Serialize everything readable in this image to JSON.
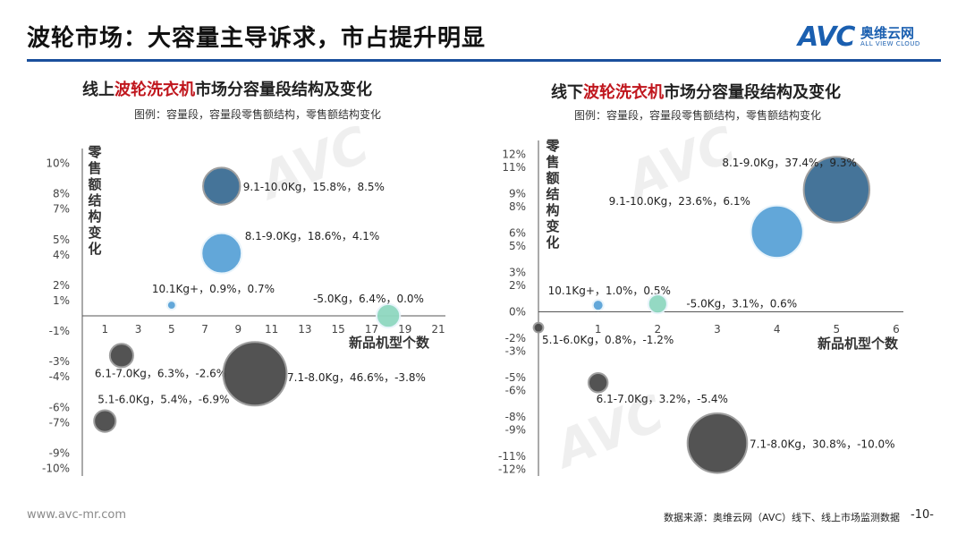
{
  "page": {
    "title": "波轮市场：大容量主导诉求，市占提升明显",
    "logo": {
      "brand": "AVC",
      "cn": "奥维云网",
      "en": "ALL VIEW CLOUD"
    },
    "footer": {
      "url": "www.avc-mr.com",
      "source": "数据来源：奥维云网（AVC）线下、线上市场监测数据",
      "page_no": "-10-"
    },
    "watermark": "AVC"
  },
  "colors": {
    "blue_dark": "#3c6d94",
    "blue_light": "#5aa3d8",
    "gray_dark": "#4a4a4a",
    "teal": "#8fd8c0",
    "highlight_red": "#c0161d",
    "rule_blue": "#1a4f9c"
  },
  "chart_data": [
    {
      "type": "bubble",
      "title_prefix": "线上",
      "title_highlight": "波轮洗衣机",
      "title_suffix": "市场分容量段结构及变化",
      "legend_text": "图例：容量段，容量段零售额结构，零售额结构变化",
      "xlabel": "新品机型个数",
      "ylabel": "零售额结构变化",
      "x_ticks": [
        1,
        3,
        5,
        7,
        9,
        11,
        13,
        15,
        17,
        19,
        21
      ],
      "x_tick_labels": [
        "1",
        "3",
        "5",
        "7",
        "9",
        "11",
        "13",
        "15",
        "17",
        "19",
        "21"
      ],
      "y_ticks": [
        10,
        8,
        7,
        5,
        4,
        2,
        1,
        -1,
        -3,
        -4,
        -6,
        -7,
        -9,
        -10
      ],
      "y_tick_labels": [
        "10%",
        "8%",
        "7%",
        "5%",
        "4%",
        "2%",
        "1%",
        "-1%",
        "-3%",
        "-4%",
        "-6%",
        "-7%",
        "-9%",
        "-10%"
      ],
      "ylim": [
        -10.5,
        10.5
      ],
      "xlim": [
        -1,
        21
      ],
      "bubbles": [
        {
          "label": "9.1-10.0Kg，15.8%，8.5%",
          "x": 8,
          "y": 8.5,
          "share": 15.8,
          "color": "#3c6d94"
        },
        {
          "label": "8.1-9.0Kg，18.6%，4.1%",
          "x": 8,
          "y": 4.1,
          "share": 18.6,
          "color": "#5aa3d8"
        },
        {
          "label": "10.1Kg+，0.9%，0.7%",
          "x": 5,
          "y": 0.7,
          "share": 0.9,
          "color": "#5aa3d8"
        },
        {
          "label": "-5.0Kg，6.4%，0.0%",
          "x": 18,
          "y": 0.0,
          "share": 6.4,
          "color": "#8fd8c0"
        },
        {
          "label": "6.1-7.0Kg，6.3%，-2.6%",
          "x": 2,
          "y": -2.6,
          "share": 6.3,
          "color": "#4a4a4a"
        },
        {
          "label": "7.1-8.0Kg，46.6%，-3.8%",
          "x": 10,
          "y": -3.8,
          "share": 46.6,
          "color": "#4a4a4a"
        },
        {
          "label": "5.1-6.0Kg，5.4%，-6.9%",
          "x": 1,
          "y": -6.9,
          "share": 5.4,
          "color": "#4a4a4a"
        }
      ]
    },
    {
      "type": "bubble",
      "title_prefix": "线下",
      "title_highlight": "波轮洗衣机",
      "title_suffix": "市场分容量段结构及变化",
      "legend_text": "图例：容量段，容量段零售额结构，零售额结构变化",
      "xlabel": "新品机型个数",
      "ylabel": "零售额结构变化",
      "x_ticks": [
        0,
        1,
        2,
        3,
        4,
        5,
        6
      ],
      "x_tick_labels": [
        "0",
        "1",
        "2",
        "3",
        "4",
        "5",
        "6"
      ],
      "y_ticks": [
        12,
        11,
        9,
        8,
        6,
        5,
        3,
        2,
        0,
        -2,
        -3,
        -5,
        -6,
        -8,
        -9,
        -11,
        -12
      ],
      "y_tick_labels": [
        "12%",
        "11%",
        "9%",
        "8%",
        "6%",
        "5%",
        "3%",
        "2%",
        "0%",
        "-2%",
        "-3%",
        "-5%",
        "-6%",
        "-8%",
        "-9%",
        "-11%",
        "-12%"
      ],
      "ylim": [
        -12.5,
        12.5
      ],
      "xlim": [
        0,
        6
      ],
      "bubbles": [
        {
          "label": "8.1-9.0Kg，37.4%，9.3%",
          "x": 5,
          "y": 9.3,
          "share": 37.4,
          "color": "#3c6d94"
        },
        {
          "label": "9.1-10.0Kg，23.6%，6.1%",
          "x": 4,
          "y": 6.1,
          "share": 23.6,
          "color": "#5aa3d8"
        },
        {
          "label": "10.1Kg+，1.0%，0.5%",
          "x": 1,
          "y": 0.5,
          "share": 1.0,
          "color": "#5aa3d8"
        },
        {
          "label": "-5.0Kg，3.1%，0.6%",
          "x": 2,
          "y": 0.6,
          "share": 3.1,
          "color": "#8fd8c0"
        },
        {
          "label": "5.1-6.0Kg，0.8%，-1.2%",
          "x": 0,
          "y": -1.2,
          "share": 0.8,
          "color": "#4a4a4a"
        },
        {
          "label": "6.1-7.0Kg，3.2%，-5.4%",
          "x": 1,
          "y": -5.4,
          "share": 3.2,
          "color": "#4a4a4a"
        },
        {
          "label": "7.1-8.0Kg，30.8%，-10.0%",
          "x": 3,
          "y": -10.0,
          "share": 30.8,
          "color": "#4a4a4a"
        }
      ]
    }
  ]
}
